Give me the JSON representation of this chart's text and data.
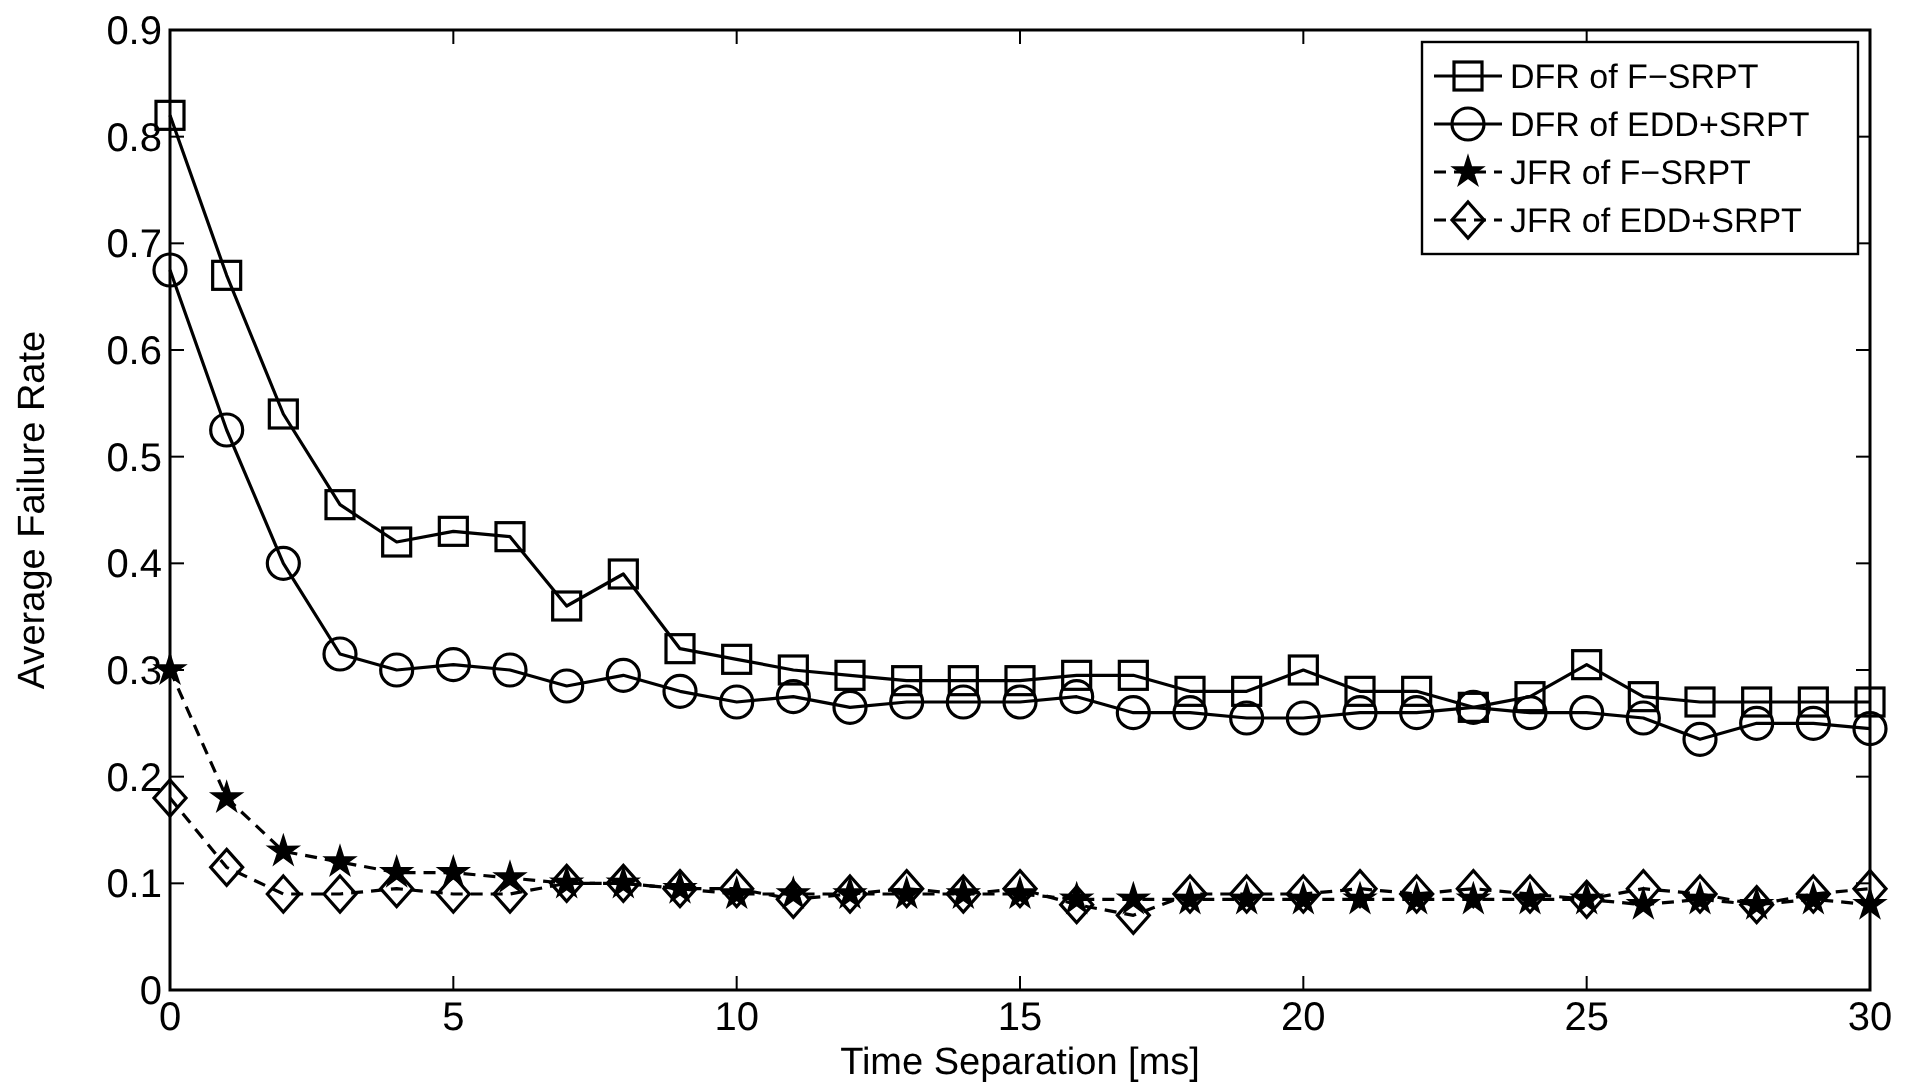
{
  "chart_data": {
    "type": "line",
    "xlabel": "Time Separation [ms]",
    "ylabel": "Average Failure Rate",
    "x": [
      0,
      1,
      2,
      3,
      4,
      5,
      6,
      7,
      8,
      9,
      10,
      11,
      12,
      13,
      14,
      15,
      16,
      17,
      18,
      19,
      20,
      21,
      22,
      23,
      24,
      25,
      26,
      27,
      28,
      29,
      30
    ],
    "xlim": [
      0,
      30
    ],
    "xticks": [
      0,
      5,
      10,
      15,
      20,
      25,
      30
    ],
    "ylim": [
      0,
      0.9
    ],
    "yticks": [
      0,
      0.1,
      0.2,
      0.3,
      0.4,
      0.5,
      0.6,
      0.7,
      0.8,
      0.9
    ],
    "grid": false,
    "legend": "top right",
    "series": [
      {
        "name": "DFR of F−SRPT",
        "color": "#000000",
        "marker": "square",
        "line_style": "solid",
        "values": [
          0.82,
          0.67,
          0.54,
          0.455,
          0.42,
          0.43,
          0.425,
          0.36,
          0.39,
          0.32,
          0.31,
          0.3,
          0.295,
          0.29,
          0.29,
          0.29,
          0.295,
          0.295,
          0.28,
          0.28,
          0.3,
          0.28,
          0.28,
          0.265,
          0.275,
          0.305,
          0.275,
          0.27,
          0.27,
          0.27,
          0.27
        ]
      },
      {
        "name": "DFR of EDD+SRPT",
        "color": "#000000",
        "marker": "circle",
        "line_style": "solid",
        "values": [
          0.675,
          0.525,
          0.4,
          0.315,
          0.3,
          0.305,
          0.3,
          0.285,
          0.295,
          0.28,
          0.27,
          0.275,
          0.265,
          0.27,
          0.27,
          0.27,
          0.275,
          0.26,
          0.26,
          0.255,
          0.255,
          0.26,
          0.26,
          0.265,
          0.26,
          0.26,
          0.255,
          0.235,
          0.25,
          0.25,
          0.245
        ]
      },
      {
        "name": "JFR of F−SRPT",
        "color": "#000000",
        "marker": "star",
        "line_style": "dashed",
        "values": [
          0.3,
          0.18,
          0.13,
          0.12,
          0.11,
          0.11,
          0.105,
          0.1,
          0.1,
          0.095,
          0.09,
          0.09,
          0.09,
          0.09,
          0.09,
          0.09,
          0.085,
          0.085,
          0.085,
          0.085,
          0.085,
          0.085,
          0.085,
          0.085,
          0.085,
          0.085,
          0.08,
          0.085,
          0.08,
          0.085,
          0.08
        ]
      },
      {
        "name": "JFR of EDD+SRPT",
        "color": "#000000",
        "marker": "diamond",
        "line_style": "dashed",
        "values": [
          0.18,
          0.115,
          0.09,
          0.09,
          0.095,
          0.09,
          0.09,
          0.1,
          0.1,
          0.095,
          0.095,
          0.085,
          0.09,
          0.095,
          0.09,
          0.095,
          0.08,
          0.07,
          0.09,
          0.09,
          0.09,
          0.095,
          0.09,
          0.095,
          0.09,
          0.085,
          0.095,
          0.09,
          0.08,
          0.09,
          0.095
        ]
      }
    ]
  }
}
